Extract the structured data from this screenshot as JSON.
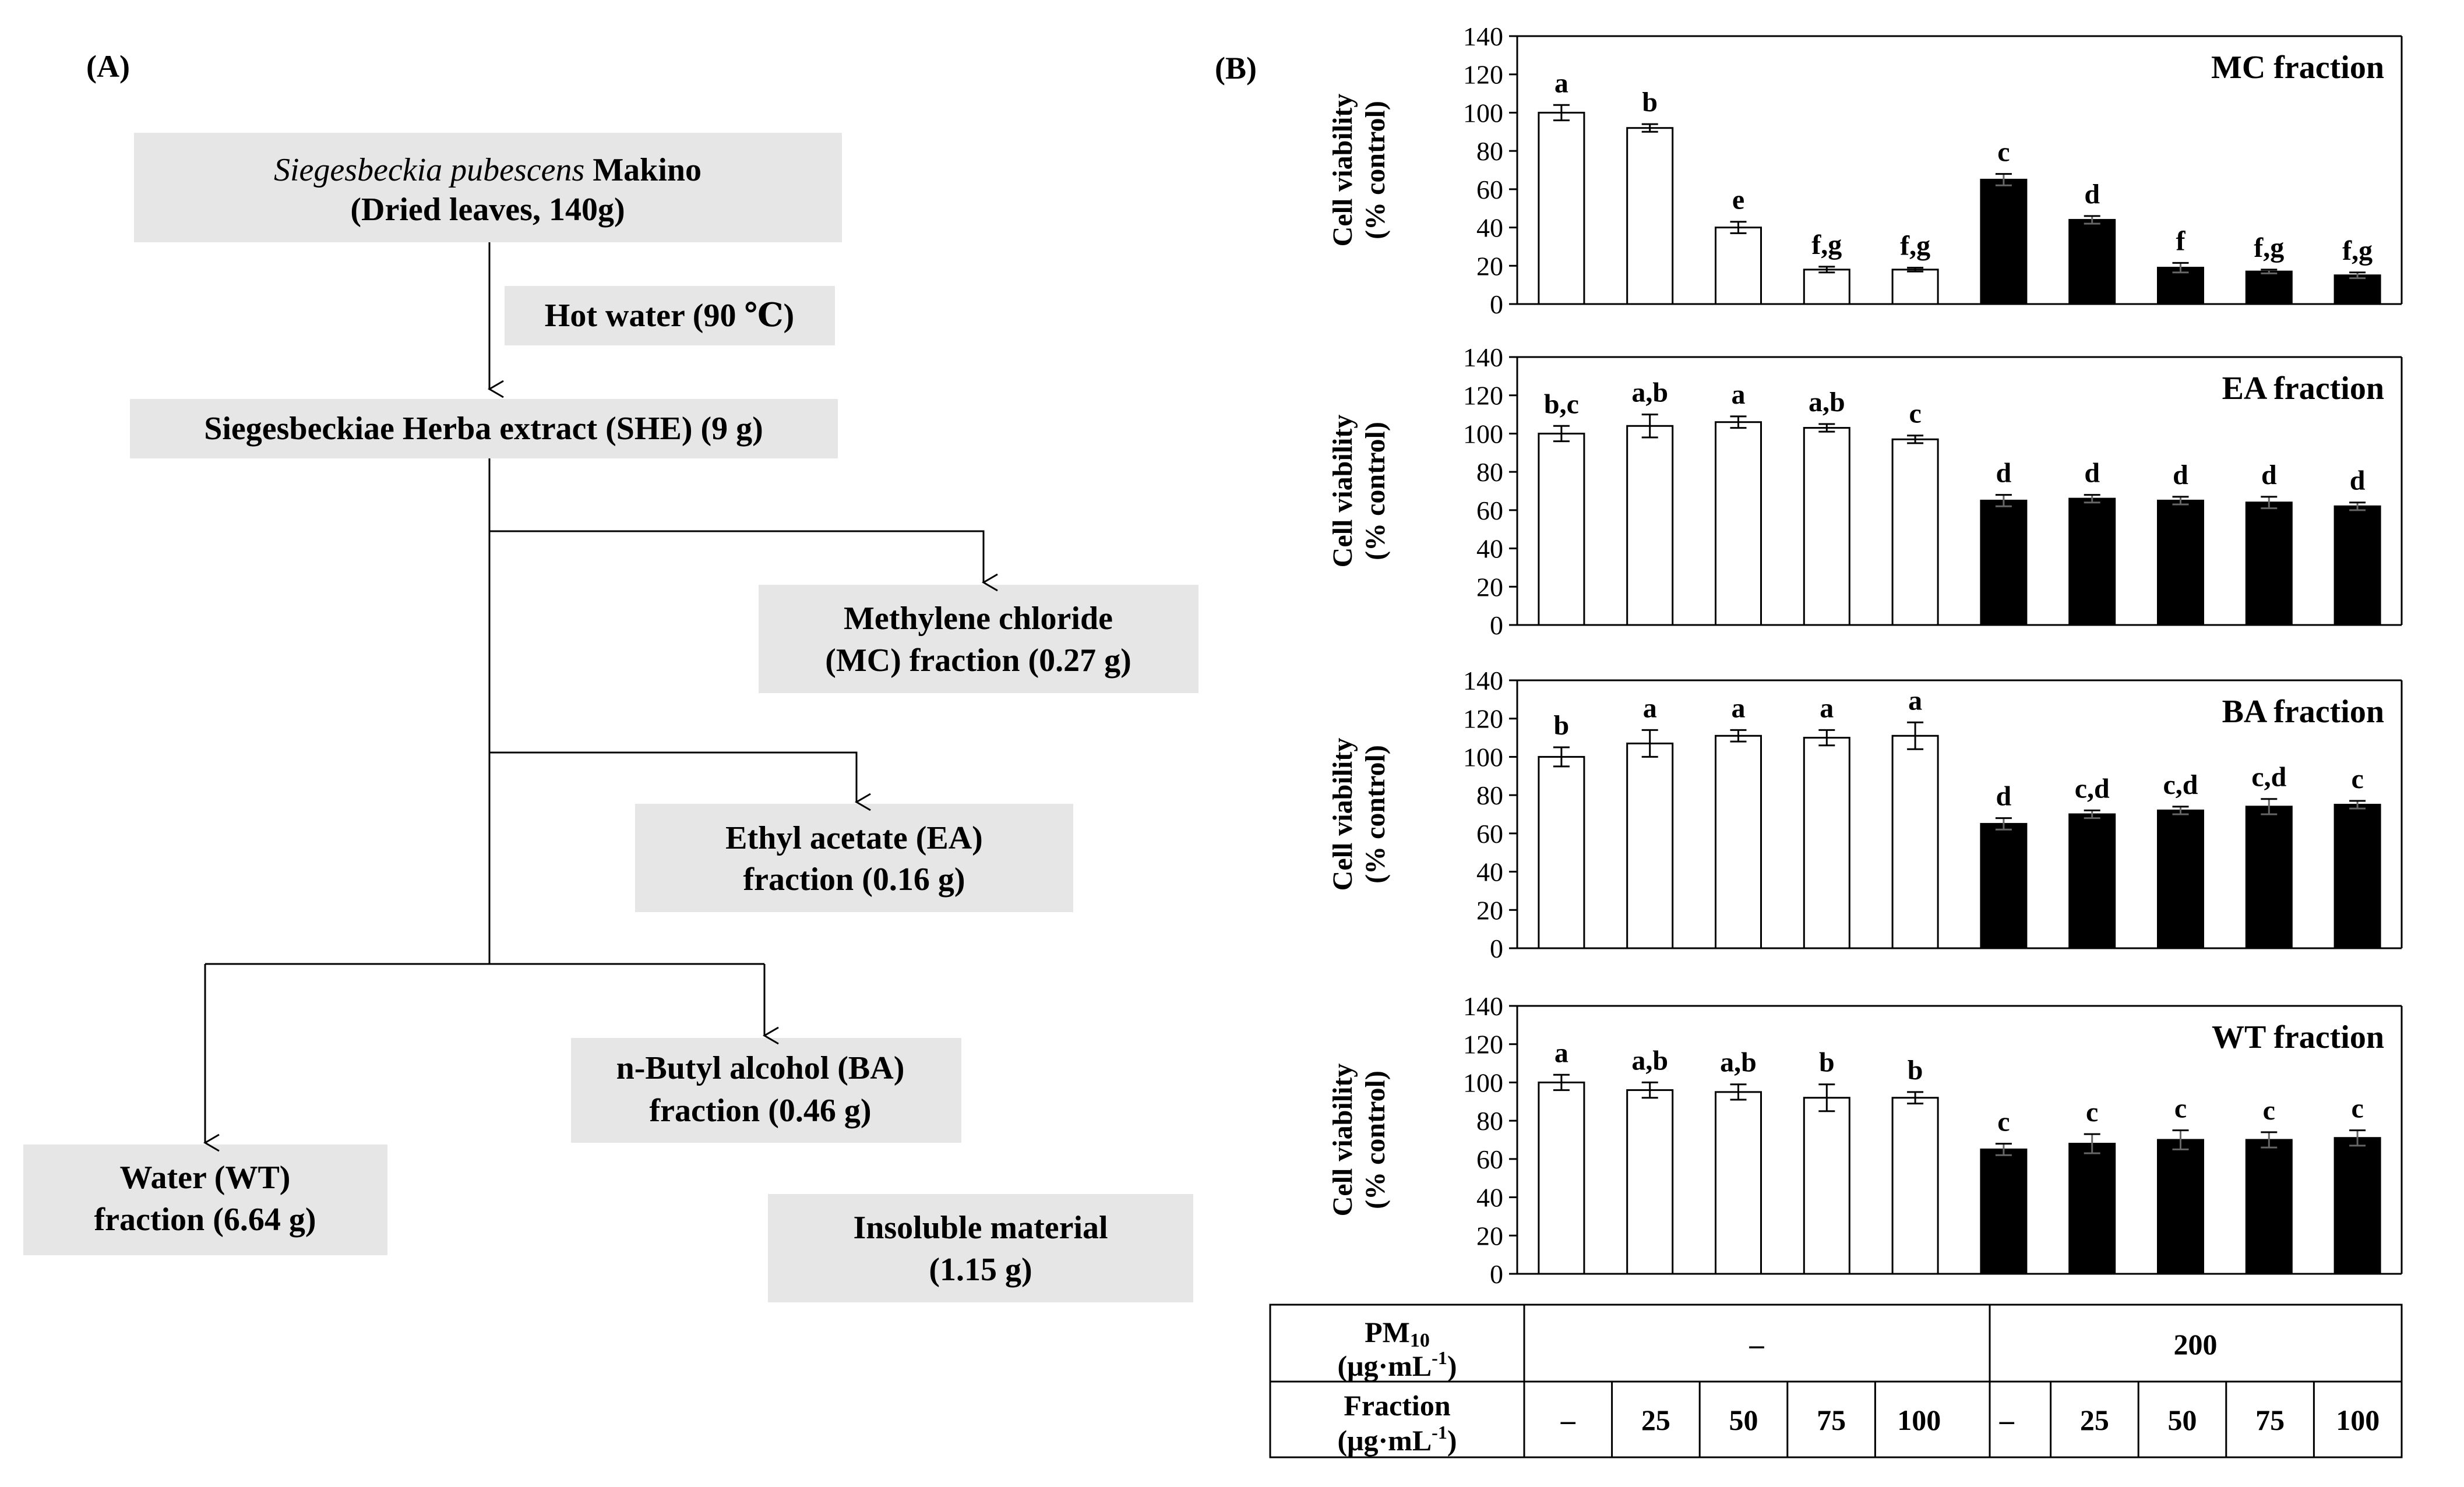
{
  "panel_a": {
    "label": "(A)",
    "nodes": {
      "plant_species": "Siegesbeckia pubescens",
      "plant_author": " Makino",
      "plant_sub": "(Dried leaves, 140g)",
      "hot_water": "Hot water (90 ℃)",
      "she": "Siegesbeckiae  Herba extract (SHE)  (9 g)",
      "mc_1": "Methylene  chloride",
      "mc_2": "(MC) fraction (0.27 g)",
      "ea_1": "Ethyl acetate (EA)",
      "ea_2": "fraction (0.16 g)",
      "ba_1": "n-Butyl alcohol (BA)",
      "ba_2": "fraction (0.46 g)",
      "wt_1": "Water (WT)",
      "wt_2": "fraction (6.64 g)",
      "ins_1": "Insoluble  material",
      "ins_2": "(1.15 g)"
    }
  },
  "panel_b": {
    "label": "(B)",
    "ylabel_1": "Cell viability",
    "ylabel_2": "(% control)",
    "yticks": [
      "0",
      "20",
      "40",
      "60",
      "80",
      "100",
      "120",
      "140"
    ],
    "table": {
      "pm_label": "PM",
      "pm_sub": "10",
      "pm_unit": "(μg·mL",
      "pm_unit_sup": "-1",
      "pm_unit_close": ")",
      "pm_none": "–",
      "pm_val": "200",
      "frac_label": "Fraction",
      "frac_unit": "(μg·mL",
      "frac_unit_sup": "-1",
      "frac_unit_close": ")",
      "conc": [
        "–",
        "25",
        "50",
        "75",
        "100",
        "–",
        "25",
        "50",
        "75",
        "100"
      ]
    },
    "colors": {
      "white_bar": "#ffffff",
      "black_bar": "#000000",
      "axis": "#000000"
    }
  },
  "chart_data": [
    {
      "type": "bar",
      "title": "MC fraction",
      "categories": [
        "–",
        "25",
        "50",
        "75",
        "100",
        "–",
        "25",
        "50",
        "75",
        "100"
      ],
      "values": [
        100,
        92,
        40,
        18,
        18,
        65,
        44,
        19,
        17,
        15
      ],
      "errors": [
        4,
        2,
        3,
        1.5,
        1,
        3,
        2,
        2.5,
        1,
        1.5
      ],
      "letters": [
        "a",
        "b",
        "e",
        "f,g",
        "f,g",
        "c",
        "d",
        "f",
        "f,g",
        "f,g"
      ],
      "fill": [
        "white",
        "white",
        "white",
        "white",
        "white",
        "black",
        "black",
        "black",
        "black",
        "black"
      ],
      "ylim": [
        0,
        140
      ]
    },
    {
      "type": "bar",
      "title": "EA fraction",
      "categories": [
        "–",
        "25",
        "50",
        "75",
        "100",
        "–",
        "25",
        "50",
        "75",
        "100"
      ],
      "values": [
        100,
        104,
        106,
        103,
        97,
        65,
        66,
        65,
        64,
        62
      ],
      "errors": [
        4,
        6,
        3,
        2,
        2,
        3,
        2,
        2,
        3,
        2
      ],
      "letters": [
        "b,c",
        "a,b",
        "a",
        "a,b",
        "c",
        "d",
        "d",
        "d",
        "d",
        "d"
      ],
      "fill": [
        "white",
        "white",
        "white",
        "white",
        "white",
        "black",
        "black",
        "black",
        "black",
        "black"
      ],
      "ylim": [
        0,
        140
      ]
    },
    {
      "type": "bar",
      "title": "BA fraction",
      "categories": [
        "–",
        "25",
        "50",
        "75",
        "100",
        "–",
        "25",
        "50",
        "75",
        "100"
      ],
      "values": [
        100,
        107,
        111,
        110,
        111,
        65,
        70,
        72,
        74,
        75
      ],
      "errors": [
        5,
        7,
        3,
        4,
        7,
        3,
        2,
        2,
        4,
        2
      ],
      "letters": [
        "b",
        "a",
        "a",
        "a",
        "a",
        "d",
        "c,d",
        "c,d",
        "c,d",
        "c"
      ],
      "fill": [
        "white",
        "white",
        "white",
        "white",
        "white",
        "black",
        "black",
        "black",
        "black",
        "black"
      ],
      "ylim": [
        0,
        140
      ]
    },
    {
      "type": "bar",
      "title": "WT fraction",
      "categories": [
        "–",
        "25",
        "50",
        "75",
        "100",
        "–",
        "25",
        "50",
        "75",
        "100"
      ],
      "values": [
        100,
        96,
        95,
        92,
        92,
        65,
        68,
        70,
        70,
        71
      ],
      "errors": [
        4,
        4,
        4,
        7,
        3,
        3,
        5,
        5,
        4,
        4
      ],
      "letters": [
        "a",
        "a,b",
        "a,b",
        "b",
        "b",
        "c",
        "c",
        "c",
        "c",
        "c"
      ],
      "fill": [
        "white",
        "white",
        "white",
        "white",
        "white",
        "black",
        "black",
        "black",
        "black",
        "black"
      ],
      "ylim": [
        0,
        140
      ]
    }
  ]
}
